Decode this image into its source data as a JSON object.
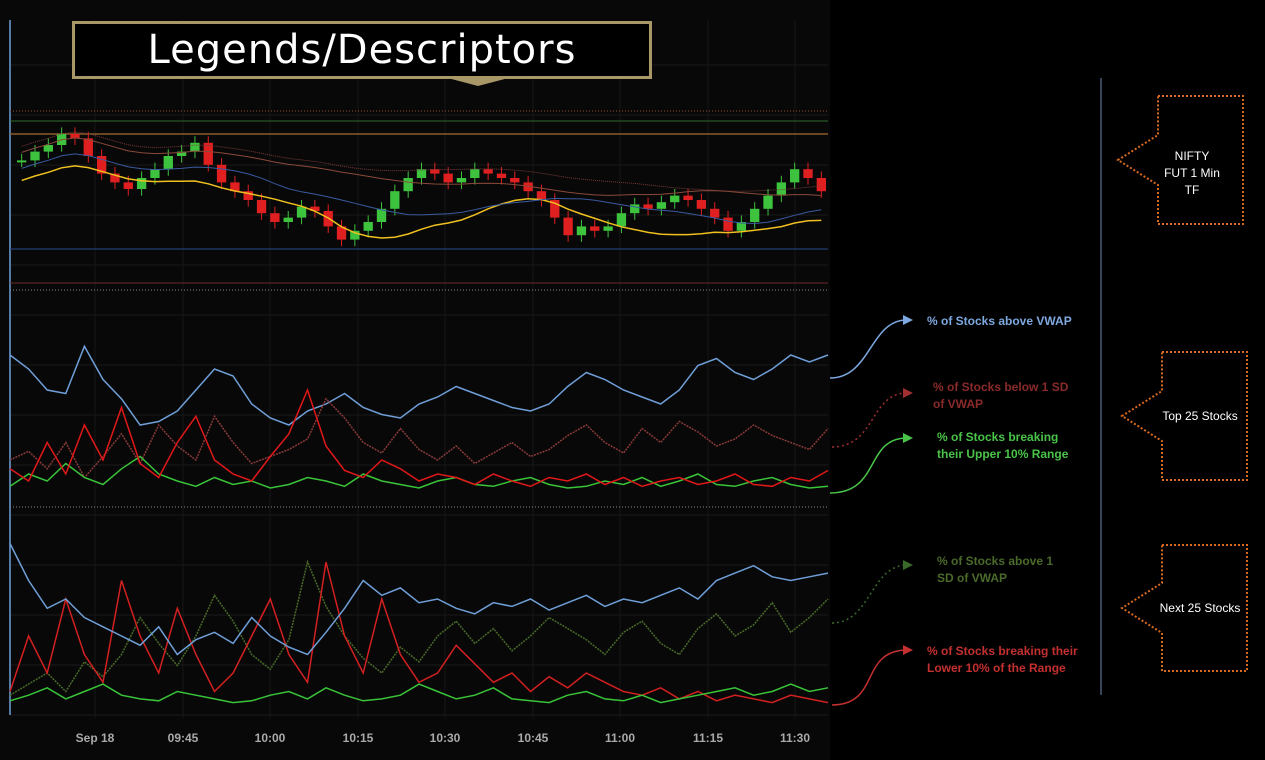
{
  "title": "Legends/Descriptors",
  "chart_data": [
    {
      "type": "line",
      "description_label": "NIFTY FUT 1 Min TF",
      "series": [
        {
          "name": "",
          "role": "candles",
          "values": [
            18,
            22,
            25,
            30,
            28,
            20,
            12,
            8,
            5,
            10,
            14,
            20,
            22,
            26,
            16,
            8,
            4,
            0,
            -6,
            -10,
            -8,
            -3,
            -5,
            -12,
            -18,
            -14,
            -10,
            -4,
            4,
            10,
            14,
            12,
            8,
            10,
            14,
            12,
            10,
            8,
            4,
            0,
            -8,
            -16,
            -12,
            -14,
            -12,
            -6,
            -2,
            -4,
            -1,
            2,
            0,
            -4,
            -8,
            -14,
            -10,
            -4,
            2,
            8,
            14,
            10,
            4
          ]
        }
      ],
      "color_up": "#3ec33e",
      "color_down": "#e02020",
      "vwap_color": "#f0c020"
    },
    {
      "type": "line",
      "panel_label": "Top 25 Stocks",
      "series": [
        {
          "name": "% of Stocks above VWAP",
          "color": "#6f9fd8",
          "values": [
            80,
            72,
            60,
            58,
            85,
            66,
            55,
            40,
            42,
            48,
            60,
            72,
            68,
            52,
            44,
            40,
            48,
            52,
            58,
            50,
            46,
            44,
            52,
            56,
            62,
            58,
            54,
            50,
            48,
            52,
            62,
            70,
            66,
            60,
            56,
            52,
            60,
            74,
            78,
            70,
            66,
            72,
            80,
            76,
            80
          ]
        },
        {
          "name": "% of Stocks below 1 SD of VWAP",
          "color": "#8a3a3a",
          "values": [
            20,
            25,
            15,
            30,
            10,
            22,
            35,
            18,
            40,
            28,
            20,
            45,
            30,
            18,
            22,
            26,
            32,
            55,
            44,
            30,
            24,
            38,
            26,
            20,
            28,
            18,
            24,
            30,
            22,
            26,
            34,
            40,
            30,
            24,
            38,
            30,
            42,
            36,
            28,
            32,
            40,
            34,
            30,
            26,
            38
          ]
        },
        {
          "name": "% of Stocks breaking their Upper 10% Range",
          "color": "#39c439",
          "values": [
            5,
            12,
            8,
            18,
            10,
            6,
            15,
            22,
            12,
            8,
            5,
            10,
            6,
            8,
            4,
            6,
            10,
            8,
            5,
            12,
            8,
            6,
            4,
            8,
            10,
            6,
            5,
            8,
            10,
            6,
            4,
            5,
            8,
            6,
            10,
            5,
            8,
            12,
            6,
            5,
            8,
            10,
            6,
            4,
            5
          ]
        },
        {
          "name": "",
          "color": "#e01818",
          "values": [
            15,
            8,
            30,
            12,
            40,
            20,
            50,
            18,
            10,
            30,
            45,
            20,
            12,
            8,
            22,
            35,
            60,
            28,
            14,
            10,
            20,
            15,
            8,
            12,
            10,
            6,
            12,
            8,
            5,
            10,
            8,
            12,
            6,
            10,
            5,
            8,
            10,
            6,
            8,
            12,
            6,
            5,
            10,
            8,
            14
          ]
        }
      ]
    },
    {
      "type": "line",
      "panel_label": "Next 25 Stocks",
      "series": [
        {
          "name": "% of Stocks above 1 SD of VWAP",
          "color": "#4a6a2a",
          "values": [
            8,
            14,
            20,
            10,
            26,
            18,
            30,
            50,
            36,
            24,
            40,
            62,
            48,
            30,
            22,
            38,
            80,
            56,
            40,
            28,
            20,
            34,
            26,
            40,
            48,
            36,
            44,
            32,
            40,
            50,
            44,
            38,
            30,
            42,
            48,
            36,
            30,
            44,
            52,
            40,
            46,
            58,
            42,
            50,
            60
          ]
        },
        {
          "name": "% of Stocks breaking their Lower 10% of the Range",
          "color": "#d32020",
          "values": [
            10,
            40,
            20,
            60,
            30,
            15,
            70,
            40,
            20,
            55,
            30,
            10,
            20,
            40,
            60,
            30,
            15,
            80,
            40,
            20,
            60,
            30,
            15,
            20,
            35,
            25,
            15,
            20,
            10,
            18,
            12,
            20,
            15,
            10,
            8,
            12,
            6,
            10,
            5,
            8,
            6,
            4,
            8,
            6,
            4
          ]
        },
        {
          "name": "",
          "color": "#6f9fd8",
          "values": [
            90,
            70,
            55,
            60,
            50,
            45,
            40,
            35,
            45,
            30,
            38,
            42,
            36,
            50,
            40,
            34,
            30,
            42,
            55,
            70,
            62,
            66,
            58,
            60,
            55,
            52,
            58,
            56,
            60,
            54,
            58,
            62,
            56,
            60,
            58,
            62,
            66,
            60,
            70,
            74,
            78,
            72,
            70,
            72,
            74
          ]
        },
        {
          "name": "",
          "color": "#39c439",
          "values": [
            5,
            8,
            12,
            6,
            10,
            14,
            8,
            6,
            5,
            10,
            8,
            6,
            4,
            5,
            8,
            10,
            6,
            12,
            8,
            5,
            6,
            8,
            14,
            10,
            6,
            8,
            12,
            6,
            5,
            4,
            8,
            10,
            6,
            5,
            8,
            4,
            6,
            8,
            10,
            12,
            8,
            10,
            14,
            10,
            12
          ]
        }
      ]
    }
  ],
  "x_ticks": [
    "Sep 18",
    "09:45",
    "10:00",
    "10:15",
    "10:30",
    "10:45",
    "11:00",
    "11:15",
    "11:30"
  ],
  "annotations": {
    "vwap_above_top": "% of Stocks above VWAP",
    "below_sd_top": "% of Stocks below 1 SD of VWAP",
    "upper_range_top": "% of Stocks breaking their Upper 10% Range",
    "above_sd_bottom": "% of Stocks above 1 SD of VWAP",
    "lower_range_bottom": "% of Stocks breaking their Lower 10% of the Range"
  },
  "colors": {
    "background": "#000000",
    "orange_dotted": "#d86a20",
    "divider": "#6f8ab0"
  }
}
